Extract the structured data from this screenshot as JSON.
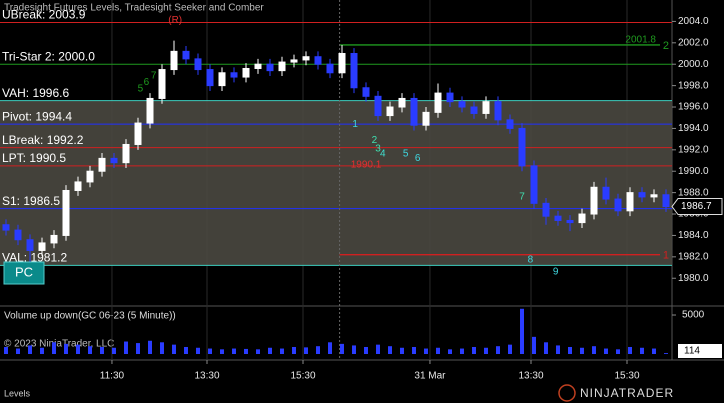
{
  "chart_data": [
    {
      "type": "candlestick",
      "title": "Tradesight Futures Levels, Tradesight Seeker and Comber",
      "x": [
        0.5,
        1.5,
        2.5,
        3.5,
        4.5,
        5.5,
        6.5,
        7.5,
        8.5,
        9.5,
        10.5,
        11.5,
        12.5,
        13.5,
        14.5,
        15.5,
        16.5,
        17.5,
        18.5,
        19.5,
        20.5,
        21.5,
        22.5,
        23.5,
        24.5,
        25.5,
        26.5,
        27.5,
        28.5,
        29.5,
        30.5,
        31.5,
        32.5,
        33.5,
        34.5,
        35.5,
        36.5,
        37.5,
        38.5,
        39.5,
        40.5,
        41.5,
        42.5,
        43.5,
        44.5,
        45.5,
        46.5,
        47.5,
        48.5,
        49.5,
        50.5,
        51.5,
        52.5,
        53.5,
        54.5,
        55.5
      ],
      "open": [
        1985.0,
        1984.5,
        1983.6,
        1982.6,
        1983.3,
        1984.0,
        1988.2,
        1989.0,
        1990.0,
        1991.2,
        1990.8,
        1992.5,
        1994.5,
        1996.8,
        1999.5,
        2001.2,
        2000.5,
        1999.5,
        1998.0,
        1999.2,
        1998.8,
        1999.6,
        2000.0,
        1999.4,
        2000.2,
        2000.4,
        2000.7,
        2000.0,
        1999.2,
        2001.0,
        1997.8,
        1997.0,
        1995.2,
        1996.0,
        1996.8,
        1994.3,
        1995.5,
        1997.3,
        1996.5,
        1996.0,
        1995.4,
        1996.5,
        1994.8,
        1994.0,
        1990.5,
        1987.0,
        1985.8,
        1985.4,
        1985.2,
        1986.0,
        1988.5,
        1987.4,
        1986.3,
        1988.0,
        1987.6,
        1987.8
      ],
      "high": [
        1985.5,
        1985.0,
        1984.1,
        1983.8,
        1984.5,
        1988.7,
        1989.5,
        1990.5,
        1991.7,
        1991.7,
        1993.0,
        1995.0,
        1997.3,
        2000.0,
        2002.2,
        2001.7,
        2001.0,
        2000.0,
        1999.7,
        1999.7,
        2000.1,
        2000.5,
        2000.5,
        2000.7,
        2000.9,
        2001.2,
        2001.2,
        2000.5,
        2001.8,
        2001.5,
        1998.3,
        1997.5,
        1996.5,
        1997.3,
        1997.3,
        1996.0,
        1998.2,
        1997.8,
        1997.0,
        1996.5,
        1997.0,
        1997.0,
        1995.3,
        1994.5,
        1991.0,
        1987.5,
        1986.3,
        1985.9,
        1986.5,
        1989.0,
        1989.4,
        1987.9,
        1988.5,
        1988.5,
        1988.3,
        1988.3
      ],
      "low": [
        1984.0,
        1983.1,
        1981.2,
        1982.1,
        1982.8,
        1983.5,
        1987.7,
        1988.5,
        1989.5,
        1990.3,
        1990.3,
        1992.0,
        1994.0,
        1996.3,
        1999.0,
        2000.0,
        1999.0,
        1997.5,
        1997.5,
        1998.3,
        1998.3,
        1999.1,
        1998.9,
        1998.9,
        1999.7,
        1999.9,
        1999.5,
        1998.7,
        1998.7,
        1997.3,
        1996.5,
        1994.7,
        1994.7,
        1995.5,
        1993.8,
        1993.8,
        1995.0,
        1996.0,
        1995.5,
        1994.9,
        1994.9,
        1994.3,
        1993.5,
        1990.0,
        1986.5,
        1985.0,
        1984.9,
        1984.4,
        1984.7,
        1985.5,
        1986.9,
        1985.8,
        1985.8,
        1987.1,
        1987.1,
        1986.2
      ],
      "close": [
        1984.5,
        1983.6,
        1982.6,
        1983.3,
        1984.0,
        1988.2,
        1989.0,
        1990.0,
        1991.2,
        1990.8,
        1992.5,
        1994.5,
        1996.8,
        1999.5,
        2001.2,
        2000.5,
        1999.5,
        1998.0,
        1999.2,
        1998.8,
        1999.6,
        2000.0,
        1999.4,
        2000.2,
        2000.4,
        2000.7,
        2000.0,
        1999.2,
        2001.0,
        1997.8,
        1997.0,
        1995.2,
        1996.0,
        1996.8,
        1994.3,
        1995.5,
        1997.3,
        1996.5,
        1996.0,
        1995.4,
        1996.5,
        1994.8,
        1994.0,
        1990.5,
        1987.0,
        1985.8,
        1985.4,
        1985.2,
        1986.0,
        1988.5,
        1987.4,
        1986.3,
        1988.0,
        1987.6,
        1987.8,
        1986.7
      ],
      "up_color": "#ffffff",
      "down_color": "#2a3cff",
      "xlim": [
        0,
        56
      ],
      "ylim": [
        1977.5,
        2006
      ],
      "yticks": [
        {
          "value": 1980,
          "label": "1980.0"
        },
        {
          "value": 1982,
          "label": "1982.0"
        },
        {
          "value": 1984,
          "label": "1984.0"
        },
        {
          "value": 1986,
          "label": "1986.0"
        },
        {
          "value": 1988,
          "label": "1988.0"
        },
        {
          "value": 1990,
          "label": "1990.0"
        },
        {
          "value": 1992,
          "label": "1992.0"
        },
        {
          "value": 1994,
          "label": "1994.0"
        },
        {
          "value": 1996,
          "label": "1996.0"
        },
        {
          "value": 1998,
          "label": "1998.0"
        },
        {
          "value": 2000,
          "label": "2000.0"
        },
        {
          "value": 2002,
          "label": "2002.0"
        },
        {
          "value": 2004,
          "label": "2004.0"
        }
      ],
      "levels": [
        {
          "label": "UBreak: 2003.9",
          "value": 2003.9,
          "color": "#d02020"
        },
        {
          "label": "Tri-Star 2: 2000.0",
          "value": 2000.0,
          "color": "#1f9a1f"
        },
        {
          "label": "VAH: 1996.6",
          "value": 1996.6,
          "color": "#3fcfc0"
        },
        {
          "label": "Pivot: 1994.4",
          "value": 1994.4,
          "color": "#2030ff"
        },
        {
          "label": "LBreak: 1992.2",
          "value": 1992.2,
          "color": "#d02020"
        },
        {
          "label": "LPT: 1990.5",
          "value": 1990.5,
          "color": "#d02020"
        },
        {
          "label": "S1: 1986.5",
          "value": 1986.5,
          "color": "#2030ff"
        },
        {
          "label": "VAL: 1981.2",
          "value": 1981.2,
          "color": "#3fcfc0"
        }
      ],
      "targets": [
        {
          "label": "2001.8",
          "marker": "2",
          "value": 2001.8,
          "start": 28.3,
          "color": "#1f9a1f"
        },
        {
          "marker": "1",
          "value": 1982.2,
          "start": 28.3,
          "color": "#d02020"
        }
      ],
      "annotations": [
        {
          "text": "(R)",
          "x": 14.6,
          "price": 2004.1,
          "color": "#e03030"
        },
        {
          "text": "1990.1",
          "x": 30.5,
          "price": 1990.6,
          "color": "#e03030"
        },
        {
          "text": "5",
          "x": 11.7,
          "price": 1997.7,
          "color": "#1f9a1f"
        },
        {
          "text": "6",
          "x": 12.2,
          "price": 1998.3,
          "color": "#1f9a1f"
        },
        {
          "text": "7",
          "x": 12.8,
          "price": 1998.9,
          "color": "#1f9a1f"
        },
        {
          "text": "1",
          "x": 29.6,
          "price": 1994.4,
          "color": "#3fd8e0"
        },
        {
          "text": "2",
          "x": 31.2,
          "price": 1992.9,
          "color": "#3fe0b0"
        },
        {
          "text": "3",
          "x": 31.5,
          "price": 1992.1,
          "color": "#3fe0b0"
        },
        {
          "text": "4",
          "x": 31.9,
          "price": 1991.6,
          "color": "#3fe0d0"
        },
        {
          "text": "5",
          "x": 33.8,
          "price": 1991.6,
          "color": "#3fd8e0"
        },
        {
          "text": "6",
          "x": 34.8,
          "price": 1991.2,
          "color": "#3fd8e0"
        },
        {
          "text": "7",
          "x": 43.5,
          "price": 1987.6,
          "color": "#3fe0b0"
        },
        {
          "text": "8",
          "x": 44.2,
          "price": 1981.7,
          "color": "#3fd8e0"
        },
        {
          "text": "9",
          "x": 46.3,
          "price": 1980.6,
          "color": "#3fd8e0"
        }
      ]
    },
    {
      "type": "bar",
      "title": "Volume up down(GC 06-23 (5 Minute))",
      "x": [
        0.5,
        1.5,
        2.5,
        3.5,
        4.5,
        5.5,
        6.5,
        7.5,
        8.5,
        9.5,
        10.5,
        11.5,
        12.5,
        13.5,
        14.5,
        15.5,
        16.5,
        17.5,
        18.5,
        19.5,
        20.5,
        21.5,
        22.5,
        23.5,
        24.5,
        25.5,
        26.5,
        27.5,
        28.5,
        29.5,
        30.5,
        31.5,
        32.5,
        33.5,
        34.5,
        35.5,
        36.5,
        37.5,
        38.5,
        39.5,
        40.5,
        41.5,
        42.5,
        43.5,
        44.5,
        45.5,
        46.5,
        47.5,
        48.5,
        49.5,
        50.5,
        51.5,
        52.5,
        53.5,
        54.5,
        55.5
      ],
      "values": [
        900,
        700,
        1100,
        800,
        1500,
        1300,
        1200,
        1000,
        900,
        800,
        1600,
        1400,
        1700,
        1500,
        1200,
        900,
        800,
        700,
        600,
        700,
        650,
        600,
        800,
        700,
        900,
        850,
        1000,
        1500,
        1300,
        1100,
        900,
        1200,
        1000,
        800,
        900,
        700,
        800,
        600,
        700,
        900,
        800,
        1000,
        1200,
        5800,
        2200,
        1500,
        1100,
        900,
        800,
        1000,
        700,
        600,
        900,
        800,
        700,
        114
      ],
      "color": "#2a3cff",
      "xlim": [
        0,
        56
      ],
      "ylim": [
        0,
        5900
      ],
      "yticks": [
        5000
      ],
      "xticks": [
        {
          "value": 9.33,
          "label": "11:30"
        },
        {
          "value": 17.25,
          "label": "13:30"
        },
        {
          "value": 25.25,
          "label": "15:30"
        },
        {
          "value": 35.83,
          "label": "31 Mar"
        },
        {
          "value": 44.25,
          "label": "13:30"
        },
        {
          "value": 52.25,
          "label": "15:30"
        }
      ]
    }
  ],
  "ui": {
    "button": "PC",
    "copyright": "© 2023 NinjaTrader, LLC",
    "footer": "Levels",
    "brand": "NINJATRADER"
  }
}
